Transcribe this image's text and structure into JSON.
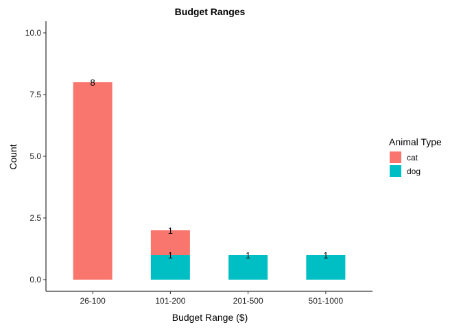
{
  "chart_data": {
    "type": "bar",
    "stacked": true,
    "title": "Budget Ranges",
    "xlabel": "Budget Range ($)",
    "ylabel": "Count",
    "categories": [
      "26-100",
      "101-200",
      "201-500",
      "501-1000"
    ],
    "series": [
      {
        "name": "cat",
        "color": "#F8766D",
        "values": [
          8,
          1,
          0,
          0
        ]
      },
      {
        "name": "dog",
        "color": "#00BFC4",
        "values": [
          0,
          1,
          1,
          1
        ]
      }
    ],
    "ylim": [
      0,
      10
    ],
    "yticks": [
      "0.0",
      "2.5",
      "5.0",
      "7.5",
      "10.0"
    ],
    "ytick_values": [
      0,
      2.5,
      5,
      7.5,
      10
    ],
    "grid": false,
    "legend": {
      "title": "Animal Type",
      "position": "right"
    },
    "data_labels": true
  }
}
